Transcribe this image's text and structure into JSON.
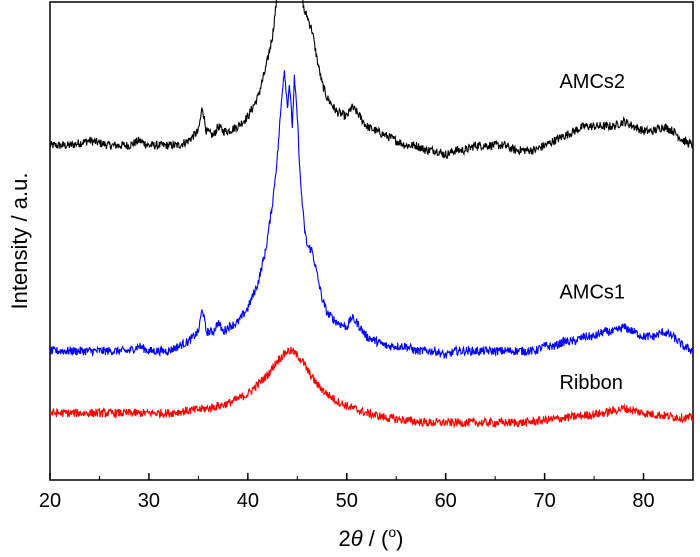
{
  "chart_data": {
    "type": "line",
    "title": "",
    "xlabel_prefix": "2",
    "xlabel_symbol": "θ",
    "xlabel_sep": " / (",
    "xlabel_unit": "o",
    "xlabel_suffix": ")",
    "ylabel": "Intensity / a.u.",
    "xlim": [
      20,
      85
    ],
    "xticks": [
      "20",
      "30",
      "40",
      "50",
      "60",
      "70",
      "80"
    ],
    "yticks_shown": false,
    "grid": false,
    "series": [
      {
        "name": "AMCs2",
        "color": "#000000",
        "points": [
          [
            20,
            0.7
          ],
          [
            22,
            0.7
          ],
          [
            24,
            0.71
          ],
          [
            26,
            0.7
          ],
          [
            28,
            0.7
          ],
          [
            29,
            0.71
          ],
          [
            30,
            0.7
          ],
          [
            32,
            0.7
          ],
          [
            33,
            0.7
          ],
          [
            34,
            0.71
          ],
          [
            35,
            0.73
          ],
          [
            35.4,
            0.78
          ],
          [
            35.8,
            0.73
          ],
          [
            36.5,
            0.72
          ],
          [
            37,
            0.74
          ],
          [
            37.5,
            0.73
          ],
          [
            38,
            0.73
          ],
          [
            39,
            0.74
          ],
          [
            40,
            0.76
          ],
          [
            41,
            0.8
          ],
          [
            41.8,
            0.86
          ],
          [
            42.5,
            0.93
          ],
          [
            43,
            1.02
          ],
          [
            43.5,
            1.16
          ],
          [
            43.7,
            1.22
          ],
          [
            44,
            1.1
          ],
          [
            44.2,
            1.17
          ],
          [
            44.5,
            1.08
          ],
          [
            44.7,
            1.19
          ],
          [
            45,
            1.12
          ],
          [
            45.3,
            1.04
          ],
          [
            45.7,
            0.98
          ],
          [
            46,
            0.97
          ],
          [
            46.5,
            0.94
          ],
          [
            47,
            0.88
          ],
          [
            47.5,
            0.83
          ],
          [
            48,
            0.8
          ],
          [
            49,
            0.77
          ],
          [
            50,
            0.76
          ],
          [
            50.5,
            0.78
          ],
          [
            51,
            0.77
          ],
          [
            52,
            0.74
          ],
          [
            53,
            0.73
          ],
          [
            54,
            0.72
          ],
          [
            55,
            0.71
          ],
          [
            56,
            0.7
          ],
          [
            57,
            0.7
          ],
          [
            58,
            0.69
          ],
          [
            59,
            0.69
          ],
          [
            60,
            0.68
          ],
          [
            61,
            0.69
          ],
          [
            62,
            0.69
          ],
          [
            63,
            0.7
          ],
          [
            64,
            0.7
          ],
          [
            65,
            0.7
          ],
          [
            66,
            0.7
          ],
          [
            67,
            0.69
          ],
          [
            68,
            0.69
          ],
          [
            69,
            0.69
          ],
          [
            70,
            0.7
          ],
          [
            71,
            0.71
          ],
          [
            72,
            0.72
          ],
          [
            73,
            0.73
          ],
          [
            74,
            0.74
          ],
          [
            75,
            0.74
          ],
          [
            76,
            0.74
          ],
          [
            77,
            0.74
          ],
          [
            78,
            0.75
          ],
          [
            79,
            0.74
          ],
          [
            80,
            0.73
          ],
          [
            81,
            0.73
          ],
          [
            82,
            0.74
          ],
          [
            83,
            0.73
          ],
          [
            84,
            0.71
          ],
          [
            85,
            0.7
          ]
        ]
      },
      {
        "name": "AMCs1",
        "color": "#0000ff",
        "points": [
          [
            20,
            0.27
          ],
          [
            22,
            0.27
          ],
          [
            24,
            0.27
          ],
          [
            26,
            0.27
          ],
          [
            28,
            0.27
          ],
          [
            29,
            0.28
          ],
          [
            30,
            0.27
          ],
          [
            32,
            0.27
          ],
          [
            33,
            0.28
          ],
          [
            34,
            0.29
          ],
          [
            35,
            0.31
          ],
          [
            35.4,
            0.36
          ],
          [
            35.8,
            0.31
          ],
          [
            36.5,
            0.31
          ],
          [
            37,
            0.33
          ],
          [
            37.5,
            0.31
          ],
          [
            38,
            0.32
          ],
          [
            39,
            0.33
          ],
          [
            40,
            0.36
          ],
          [
            41,
            0.41
          ],
          [
            41.8,
            0.48
          ],
          [
            42.5,
            0.58
          ],
          [
            43,
            0.68
          ],
          [
            43.5,
            0.82
          ],
          [
            43.7,
            0.86
          ],
          [
            44,
            0.78
          ],
          [
            44.2,
            0.83
          ],
          [
            44.5,
            0.74
          ],
          [
            44.7,
            0.84
          ],
          [
            45,
            0.76
          ],
          [
            45.3,
            0.63
          ],
          [
            45.7,
            0.53
          ],
          [
            46,
            0.49
          ],
          [
            46.5,
            0.48
          ],
          [
            47,
            0.43
          ],
          [
            47.5,
            0.38
          ],
          [
            48,
            0.35
          ],
          [
            49,
            0.33
          ],
          [
            50,
            0.32
          ],
          [
            50.5,
            0.34
          ],
          [
            51,
            0.33
          ],
          [
            52,
            0.3
          ],
          [
            53,
            0.29
          ],
          [
            54,
            0.28
          ],
          [
            55,
            0.28
          ],
          [
            56,
            0.28
          ],
          [
            57,
            0.27
          ],
          [
            58,
            0.27
          ],
          [
            59,
            0.27
          ],
          [
            60,
            0.26
          ],
          [
            61,
            0.27
          ],
          [
            62,
            0.27
          ],
          [
            63,
            0.27
          ],
          [
            64,
            0.27
          ],
          [
            65,
            0.27
          ],
          [
            66,
            0.27
          ],
          [
            67,
            0.27
          ],
          [
            68,
            0.27
          ],
          [
            69,
            0.27
          ],
          [
            70,
            0.28
          ],
          [
            71,
            0.28
          ],
          [
            72,
            0.29
          ],
          [
            73,
            0.29
          ],
          [
            74,
            0.3
          ],
          [
            75,
            0.3
          ],
          [
            76,
            0.31
          ],
          [
            77,
            0.31
          ],
          [
            78,
            0.32
          ],
          [
            79,
            0.31
          ],
          [
            80,
            0.3
          ],
          [
            81,
            0.3
          ],
          [
            82,
            0.31
          ],
          [
            83,
            0.3
          ],
          [
            84,
            0.28
          ],
          [
            85,
            0.27
          ]
        ]
      },
      {
        "name": "Ribbon",
        "color": "#ff0000",
        "points": [
          [
            20,
            0.14
          ],
          [
            22,
            0.14
          ],
          [
            24,
            0.14
          ],
          [
            26,
            0.14
          ],
          [
            28,
            0.14
          ],
          [
            30,
            0.14
          ],
          [
            32,
            0.14
          ],
          [
            34,
            0.145
          ],
          [
            36,
            0.15
          ],
          [
            38,
            0.16
          ],
          [
            39,
            0.17
          ],
          [
            40,
            0.18
          ],
          [
            41,
            0.2
          ],
          [
            42,
            0.22
          ],
          [
            43,
            0.25
          ],
          [
            43.5,
            0.26
          ],
          [
            44,
            0.27
          ],
          [
            44.5,
            0.27
          ],
          [
            45,
            0.26
          ],
          [
            45.5,
            0.25
          ],
          [
            46,
            0.23
          ],
          [
            47,
            0.2
          ],
          [
            48,
            0.18
          ],
          [
            49,
            0.165
          ],
          [
            50,
            0.155
          ],
          [
            52,
            0.14
          ],
          [
            54,
            0.13
          ],
          [
            56,
            0.125
          ],
          [
            58,
            0.12
          ],
          [
            60,
            0.12
          ],
          [
            62,
            0.12
          ],
          [
            64,
            0.12
          ],
          [
            66,
            0.12
          ],
          [
            68,
            0.12
          ],
          [
            70,
            0.125
          ],
          [
            72,
            0.13
          ],
          [
            74,
            0.135
          ],
          [
            76,
            0.14
          ],
          [
            77,
            0.145
          ],
          [
            78,
            0.15
          ],
          [
            79,
            0.145
          ],
          [
            80,
            0.14
          ],
          [
            82,
            0.135
          ],
          [
            84,
            0.13
          ],
          [
            85,
            0.13
          ]
        ]
      }
    ],
    "annotations": [
      {
        "text": "AMCs2",
        "x": 71.5,
        "y": 0.82
      },
      {
        "text": "AMCs1",
        "x": 71.5,
        "y": 0.38
      },
      {
        "text": "Ribbon",
        "x": 71.5,
        "y": 0.19
      }
    ]
  }
}
